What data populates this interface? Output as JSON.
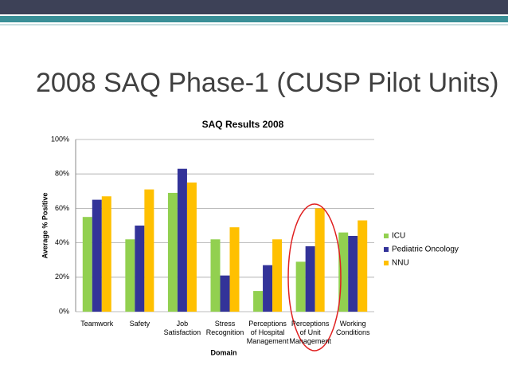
{
  "slide_title": "2008 SAQ Phase-1 (CUSP Pilot Units)",
  "chart_data": {
    "type": "bar",
    "title": "SAQ Results 2008",
    "x_label": "Domain",
    "y_label": "Average % Positive",
    "categories": [
      "Teamwork",
      "Safety",
      "Job Satisfaction",
      "Stress Recognition",
      "Perceptions of Hospital Management",
      "Perceptions of Unit Management",
      "Working Conditions"
    ],
    "series": [
      {
        "name": "ICU",
        "color": "#92d050",
        "values": [
          55,
          42,
          69,
          42,
          12,
          29,
          46
        ]
      },
      {
        "name": "Pediatric Oncology",
        "color": "#333399",
        "values": [
          65,
          50,
          83,
          21,
          27,
          38,
          44
        ]
      },
      {
        "name": "NNU",
        "color": "#ffc000",
        "values": [
          67,
          71,
          75,
          49,
          42,
          60,
          53
        ]
      }
    ],
    "ylim": [
      0,
      100
    ],
    "yticks": [
      {
        "value": 0,
        "label": "0%"
      },
      {
        "value": 20,
        "label": "20%"
      },
      {
        "value": 40,
        "label": "40%"
      },
      {
        "value": 60,
        "label": "60%"
      },
      {
        "value": 80,
        "label": "80%"
      },
      {
        "value": 100,
        "label": "100%"
      }
    ],
    "grid": true,
    "legend": "right"
  }
}
